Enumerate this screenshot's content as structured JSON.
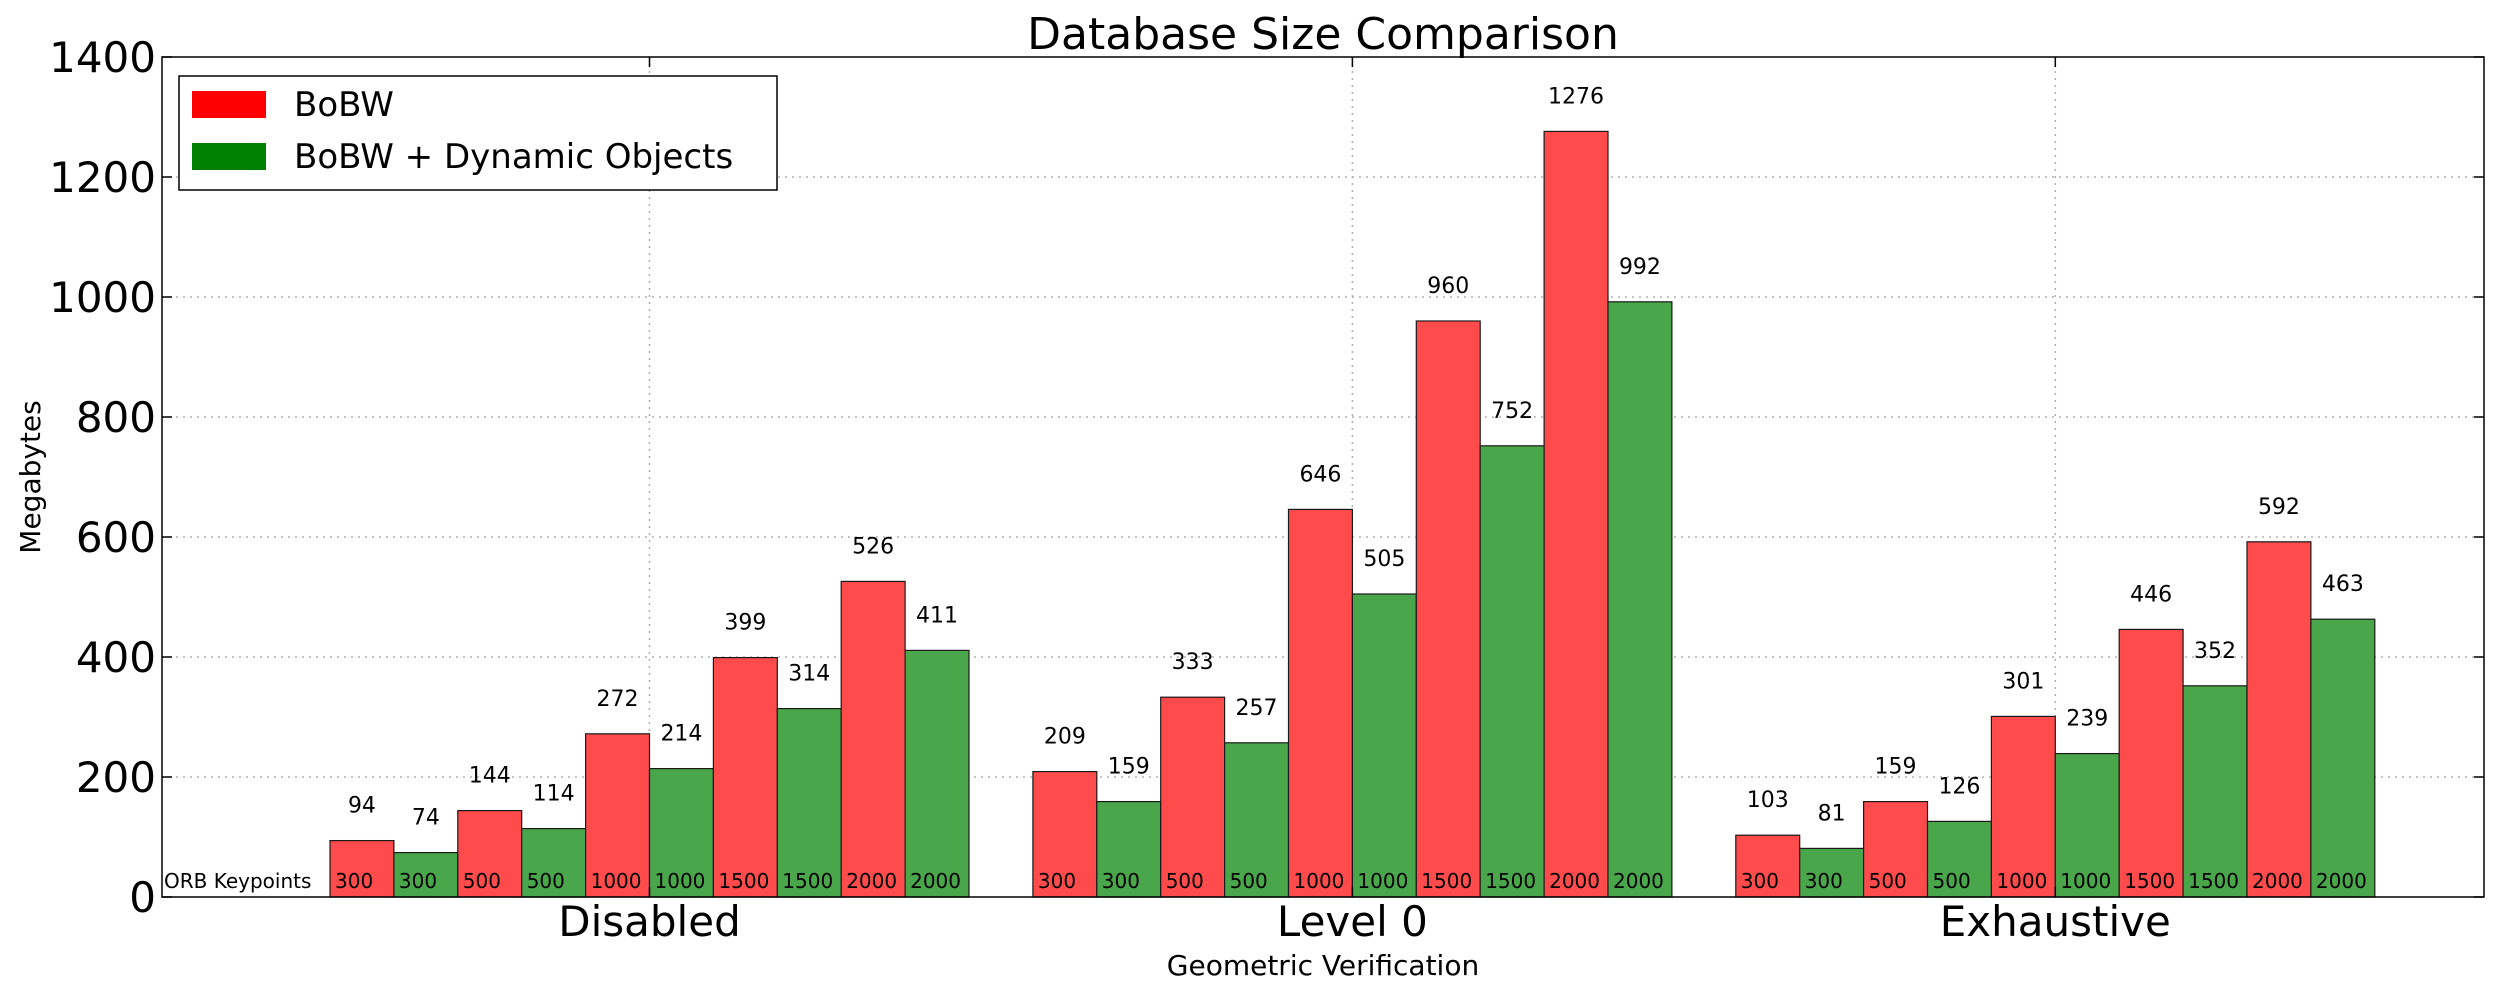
{
  "chart_data": {
    "type": "bar",
    "title": "Database Size Comparison",
    "xlabel": "Geometric Verification",
    "ylabel": "Megabytes",
    "ylim": [
      0,
      1400
    ],
    "yticks": [
      "0",
      "200",
      "400",
      "600",
      "800",
      "1000",
      "1200",
      "1400"
    ],
    "grid": true,
    "legend_position": "top-left",
    "keypoints_label": "ORB Keypoints",
    "groups": [
      "Disabled",
      "Level 0",
      "Exhaustive"
    ],
    "keypoints": [
      "300",
      "500",
      "1000",
      "1500",
      "2000"
    ],
    "series": [
      {
        "name": "BoBW",
        "color": "#ff4b4b",
        "values": [
          [
            94,
            144,
            272,
            399,
            526
          ],
          [
            209,
            333,
            646,
            960,
            1276
          ],
          [
            103,
            159,
            301,
            446,
            592
          ]
        ]
      },
      {
        "name": "BoBW + Dynamic Objects",
        "color": "#4aa64a",
        "values": [
          [
            74,
            114,
            214,
            314,
            411
          ],
          [
            159,
            257,
            505,
            752,
            992
          ],
          [
            81,
            126,
            239,
            352,
            463
          ]
        ]
      }
    ],
    "legend_colors": [
      "#ff0000",
      "#008000"
    ]
  }
}
